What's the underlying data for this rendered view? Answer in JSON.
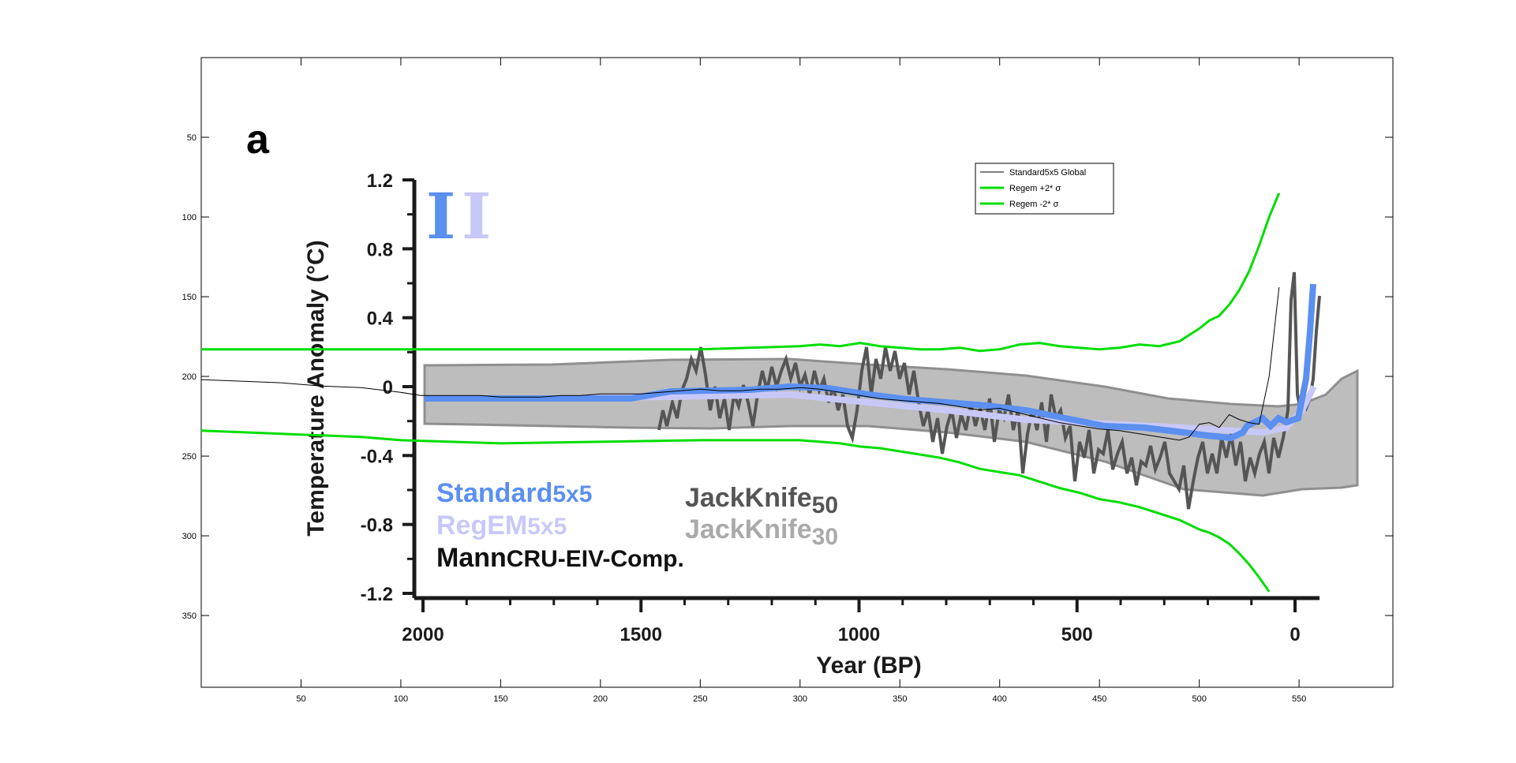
{
  "chart_data": {
    "type": "line",
    "background_figure": {
      "panel_letter": "a",
      "ylabel": "Temperature Anomaly (°C)",
      "xlabel": "Year (BP)",
      "yticks": [
        "1.2",
        "0.8",
        "0.4",
        "0",
        "-0.4",
        "-0.8",
        "-1.2"
      ],
      "xticks": [
        "2000",
        "1500",
        "1000",
        "500",
        "0"
      ],
      "key_entries": [
        {
          "prefix": "Standard",
          "suffix": "5x5",
          "color": "#5b8ff0"
        },
        {
          "prefix": "RegEM",
          "suffix": "5x5",
          "color": "#c8c8f8"
        },
        {
          "prefix": "Mann",
          "suffix": "CRU-EIV-Comp.",
          "color": "#111111"
        },
        {
          "prefix": "JackKnife",
          "suffix": "50",
          "color": "#555555"
        },
        {
          "prefix": "JackKnife",
          "suffix": "30",
          "color": "#aaaaaa"
        }
      ]
    },
    "axes": {
      "x_ticks": [
        50,
        100,
        150,
        200,
        250,
        300,
        350,
        400,
        450,
        500,
        550
      ],
      "y_ticks": [
        50,
        100,
        150,
        200,
        250,
        300,
        350
      ],
      "xlim": [
        0,
        597
      ],
      "ylim": [
        0,
        395
      ],
      "y_reversed": true,
      "grid": false
    },
    "legend": {
      "position": "top-right",
      "entries": [
        {
          "label": "Standard5x5 Global",
          "color": "#000000"
        },
        {
          "label": "Regem +2* σ",
          "color": "#00dd00"
        },
        {
          "label": "Regem -2* σ",
          "color": "#00dd00"
        }
      ]
    },
    "series": [
      {
        "name": "Standard5x5 Global",
        "color": "#000000",
        "x": [
          0,
          20,
          40,
          60,
          80,
          100,
          110,
          120,
          130,
          140,
          150,
          160,
          170,
          180,
          190,
          200,
          210,
          220,
          230,
          240,
          250,
          260,
          270,
          280,
          290,
          300,
          310,
          320,
          330,
          340,
          350,
          360,
          370,
          380,
          390,
          400,
          410,
          420,
          430,
          440,
          450,
          460,
          470,
          480,
          490,
          495,
          500,
          505,
          510,
          515,
          520,
          525,
          530,
          535,
          540
        ],
        "y": [
          202,
          203,
          204,
          206,
          207,
          210,
          212,
          212,
          212,
          212,
          213,
          213,
          213,
          212,
          212,
          211,
          211,
          211,
          210,
          209,
          208,
          209,
          209,
          208,
          208,
          207,
          208,
          210,
          212,
          214,
          215,
          216,
          217,
          219,
          221,
          220,
          223,
          226,
          229,
          231,
          233,
          234,
          236,
          238,
          240,
          238,
          230,
          229,
          232,
          224,
          227,
          229,
          230,
          200,
          144
        ]
      },
      {
        "name": "Regem +2* σ",
        "color": "#00dd00",
        "x": [
          0,
          20,
          40,
          60,
          80,
          100,
          150,
          200,
          250,
          300,
          310,
          320,
          330,
          340,
          350,
          360,
          370,
          380,
          390,
          400,
          410,
          420,
          430,
          440,
          450,
          460,
          470,
          480,
          490,
          500,
          505,
          510,
          515,
          520,
          525,
          530,
          535,
          540
        ],
        "y": [
          183,
          183,
          183,
          183,
          183,
          183,
          183,
          183,
          183,
          181,
          180,
          181,
          179,
          181,
          182,
          183,
          183,
          182,
          184,
          183,
          180,
          179,
          181,
          182,
          183,
          182,
          180,
          181,
          178,
          170,
          165,
          162,
          155,
          146,
          134,
          118,
          100,
          85
        ]
      },
      {
        "name": "Regem -2* σ",
        "color": "#00dd00",
        "x": [
          0,
          20,
          40,
          60,
          80,
          100,
          150,
          200,
          250,
          300,
          310,
          320,
          330,
          340,
          350,
          360,
          370,
          380,
          390,
          400,
          410,
          420,
          430,
          440,
          450,
          460,
          470,
          480,
          490,
          495,
          500,
          505,
          510,
          515,
          520,
          525,
          530,
          535
        ],
        "y": [
          234,
          235,
          236,
          237,
          238,
          240,
          242,
          241,
          240,
          240,
          241,
          242,
          244,
          245,
          247,
          249,
          251,
          254,
          258,
          260,
          262,
          266,
          270,
          273,
          277,
          279,
          282,
          286,
          290,
          293,
          296,
          298,
          301,
          305,
          311,
          318,
          326,
          335
        ]
      }
    ]
  }
}
